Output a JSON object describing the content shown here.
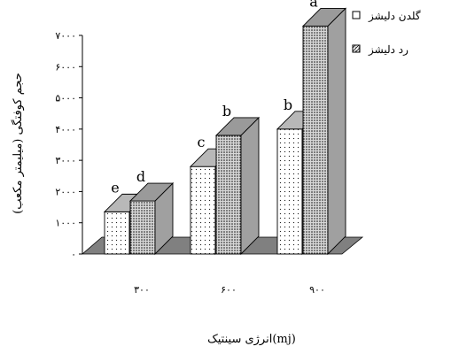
{
  "chart_data": {
    "type": "bar",
    "style": "3d-clustered-column",
    "categories": [
      "۳۰۰",
      "۶۰۰",
      "۹۰۰"
    ],
    "series": [
      {
        "name": "گلدن دلیشز",
        "values": [
          1350,
          2800,
          4000
        ],
        "labels": [
          "e",
          "c",
          "b"
        ],
        "pattern": "dots"
      },
      {
        "name": "رد دلیشز",
        "values": [
          1700,
          3800,
          7300
        ],
        "labels": [
          "d",
          "b",
          "a"
        ],
        "pattern": "dense-dots"
      }
    ],
    "y_ticks": [
      "۰",
      "۱۰۰۰",
      "۲۰۰۰",
      "۳۰۰۰",
      "۴۰۰۰",
      "۵۰۰۰",
      "۶۰۰۰",
      "۷۰۰۰"
    ],
    "ylim": [
      0,
      7000
    ],
    "xlabel": "انرژی سینتیک(mj)",
    "ylabel": "حجم کوفتگی (میلیمتر مکعب)",
    "legend_position": "top-right",
    "floor_color": "#808080"
  }
}
